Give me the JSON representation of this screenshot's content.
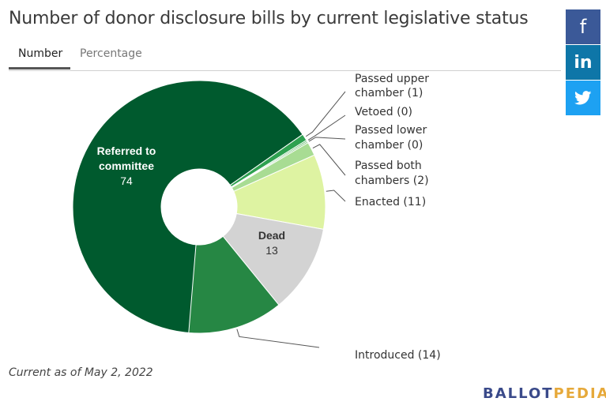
{
  "header": {
    "title": "Number of donor disclosure bills by current legislative status"
  },
  "tabs": [
    {
      "label": "Number",
      "active": true
    },
    {
      "label": "Percentage",
      "active": false
    }
  ],
  "social": [
    {
      "name": "facebook",
      "glyph": "f",
      "color": "#3b5998"
    },
    {
      "name": "linkedin",
      "glyph": "in",
      "color": "#0e76a8"
    },
    {
      "name": "twitter",
      "glyph": "twitter-bird",
      "color": "#1da1f2"
    }
  ],
  "chart_data": {
    "type": "pie",
    "title": "Number of donor disclosure bills by current legislative status",
    "donut": true,
    "slices": [
      {
        "label": "Referred to committee",
        "value": 74,
        "color": "#005a2e",
        "label_lines": [
          "Referred to",
          "committee"
        ],
        "label_mode": "inside"
      },
      {
        "label": "Passed upper chamber",
        "value": 1,
        "color": "#2ea150",
        "label_lines": [
          "Passed upper",
          "chamber (1)"
        ],
        "label_mode": "outside"
      },
      {
        "label": "Vetoed",
        "value": 0,
        "color": "#57b565",
        "label_lines": [
          "Vetoed (0)"
        ],
        "label_mode": "outside"
      },
      {
        "label": "Passed lower chamber",
        "value": 0,
        "color": "#7cc47a",
        "label_lines": [
          "Passed lower",
          "chamber (0)"
        ],
        "label_mode": "outside"
      },
      {
        "label": "Passed both chambers",
        "value": 2,
        "color": "#a8dc93",
        "label_lines": [
          "Passed both",
          "chambers (2)"
        ],
        "label_mode": "outside"
      },
      {
        "label": "Enacted",
        "value": 11,
        "color": "#def3a2",
        "label_lines": [
          "Enacted (11)"
        ],
        "label_mode": "outside"
      },
      {
        "label": "Dead",
        "value": 13,
        "color": "#d3d3d3",
        "label_lines": [
          "Dead"
        ],
        "label_mode": "inside"
      },
      {
        "label": "Introduced",
        "value": 14,
        "color": "#268744",
        "label_lines": [
          "Introduced (14)"
        ],
        "label_mode": "outside"
      }
    ]
  },
  "footer": {
    "note": "Current as of May 2, 2022",
    "brand_part1": "BALLOT",
    "brand_part2": "PEDIA"
  }
}
